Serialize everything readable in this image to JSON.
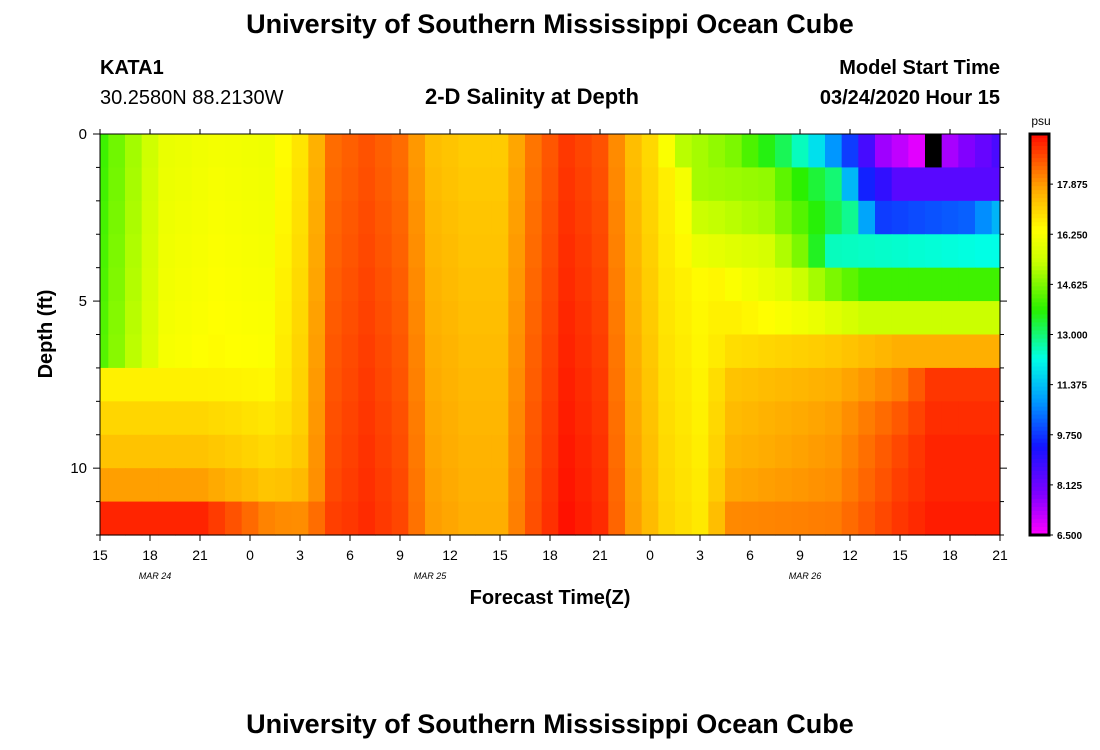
{
  "page": {
    "title_top": "University of Southern Mississippi Ocean Cube",
    "title_bottom": "University of Southern Mississippi Ocean Cube",
    "station": "KATA1",
    "coordinates": "30.2580N 88.2130W",
    "plot_title": "2-D Salinity at Depth",
    "model_start_label": "Model Start Time",
    "model_start_value": "03/24/2020 Hour 15"
  },
  "chart_data": {
    "type": "heatmap",
    "title": "2-D Salinity at Depth",
    "xlabel": "Forecast Time(Z)",
    "ylabel": "Depth (ft)",
    "x_range": [
      0,
      54
    ],
    "y_range": [
      0,
      12
    ],
    "x_ticks": [
      {
        "x": 0,
        "label": "15"
      },
      {
        "x": 3,
        "label": "18"
      },
      {
        "x": 6,
        "label": "21"
      },
      {
        "x": 9,
        "label": "0"
      },
      {
        "x": 12,
        "label": "3"
      },
      {
        "x": 15,
        "label": "6"
      },
      {
        "x": 18,
        "label": "9"
      },
      {
        "x": 21,
        "label": "12"
      },
      {
        "x": 24,
        "label": "15"
      },
      {
        "x": 27,
        "label": "18"
      },
      {
        "x": 30,
        "label": "21"
      },
      {
        "x": 33,
        "label": "0"
      },
      {
        "x": 36,
        "label": "3"
      },
      {
        "x": 39,
        "label": "6"
      },
      {
        "x": 42,
        "label": "9"
      },
      {
        "x": 45,
        "label": "12"
      },
      {
        "x": 48,
        "label": "15"
      },
      {
        "x": 51,
        "label": "18"
      },
      {
        "x": 54,
        "label": "21"
      }
    ],
    "date_labels": [
      {
        "x": 4.5,
        "label": "MAR 24"
      },
      {
        "x": 21,
        "label": "MAR 25"
      },
      {
        "x": 43.5,
        "label": "MAR 26"
      }
    ],
    "y_ticks": [
      {
        "y": 0,
        "label": "0"
      },
      {
        "y": 5,
        "label": "5"
      },
      {
        "y": 10,
        "label": "10"
      }
    ],
    "y_minor_ticks": [
      1,
      2,
      3,
      4,
      6,
      7,
      8,
      9,
      11,
      12
    ],
    "colorbar": {
      "unit": "psu",
      "min": 6.5,
      "max": 19.5,
      "tick_values": [
        6.5,
        8.125,
        9.75,
        11.375,
        13.0,
        14.625,
        16.25,
        17.875
      ],
      "tick_labels": [
        "6.500",
        "8.125",
        "9.750",
        "11.375",
        "13.000",
        "14.625",
        "16.250",
        "17.875"
      ]
    },
    "columns": 55,
    "rows": 12,
    "model": {
      "description": "salinity(psu) at forecast hour x (0-54) and depth row (0-11)",
      "base_profile": [
        {
          "x": 0,
          "s": 14.2
        },
        {
          "x": 2,
          "s": 15.2
        },
        {
          "x": 4,
          "s": 16.2
        },
        {
          "x": 7,
          "s": 16.4
        },
        {
          "x": 10,
          "s": 16.3
        },
        {
          "x": 12,
          "s": 17.0
        },
        {
          "x": 14,
          "s": 18.6
        },
        {
          "x": 16,
          "s": 18.9
        },
        {
          "x": 18,
          "s": 18.6
        },
        {
          "x": 20,
          "s": 17.6
        },
        {
          "x": 22,
          "s": 17.4
        },
        {
          "x": 24,
          "s": 17.4
        },
        {
          "x": 26,
          "s": 18.5
        },
        {
          "x": 28,
          "s": 19.2
        },
        {
          "x": 30,
          "s": 18.9
        },
        {
          "x": 32,
          "s": 17.6
        },
        {
          "x": 34,
          "s": 16.8
        },
        {
          "x": 36,
          "s": 16.5
        },
        {
          "x": 40,
          "s": 16.5
        },
        {
          "x": 44,
          "s": 16.5
        },
        {
          "x": 48,
          "s": 16.5
        },
        {
          "x": 54,
          "s": 16.5
        }
      ],
      "fresh_rows": [
        [
          {
            "x": 33,
            "s": 16.8
          },
          {
            "x": 35,
            "s": 15.2
          },
          {
            "x": 38,
            "s": 14.6
          },
          {
            "x": 41,
            "s": 13.2
          },
          {
            "x": 43,
            "s": 11.8
          },
          {
            "x": 45,
            "s": 9.8
          },
          {
            "x": 47,
            "s": 7.5
          },
          {
            "x": 49,
            "s": 6.8
          },
          {
            "x": 51,
            "s": 7.4
          },
          {
            "x": 54,
            "s": 8.6
          }
        ],
        [
          {
            "x": 34,
            "s": 16.8
          },
          {
            "x": 36,
            "s": 15.0
          },
          {
            "x": 40,
            "s": 14.8
          },
          {
            "x": 42,
            "s": 13.8
          },
          {
            "x": 44,
            "s": 13.0
          },
          {
            "x": 46,
            "s": 9.5
          },
          {
            "x": 48,
            "s": 8.4
          },
          {
            "x": 54,
            "s": 8.4
          }
        ],
        [
          {
            "x": 34,
            "s": 16.8
          },
          {
            "x": 36,
            "s": 15.4
          },
          {
            "x": 40,
            "s": 15.0
          },
          {
            "x": 42,
            "s": 14.2
          },
          {
            "x": 45,
            "s": 12.8
          },
          {
            "x": 46,
            "s": 11.0
          },
          {
            "x": 47,
            "s": 9.8
          },
          {
            "x": 52,
            "s": 10.2
          },
          {
            "x": 54,
            "s": 11.2
          }
        ],
        [
          {
            "x": 34,
            "s": 16.8
          },
          {
            "x": 36,
            "s": 16.0
          },
          {
            "x": 40,
            "s": 15.6
          },
          {
            "x": 42,
            "s": 14.6
          },
          {
            "x": 44,
            "s": 12.5
          },
          {
            "x": 54,
            "s": 12.2
          }
        ],
        [
          {
            "x": 36,
            "s": 16.8
          },
          {
            "x": 38,
            "s": 16.3
          },
          {
            "x": 41,
            "s": 15.8
          },
          {
            "x": 44,
            "s": 14.6
          },
          {
            "x": 46,
            "s": 14.0
          },
          {
            "x": 54,
            "s": 14.0
          }
        ],
        [
          {
            "x": 36,
            "s": 16.8
          },
          {
            "x": 40,
            "s": 16.4
          },
          {
            "x": 43,
            "s": 16.0
          },
          {
            "x": 46,
            "s": 15.4
          },
          {
            "x": 54,
            "s": 15.4
          }
        ],
        [
          {
            "x": 36,
            "s": 16.8
          },
          {
            "x": 44,
            "s": 17.2
          },
          {
            "x": 48,
            "s": 17.6
          },
          {
            "x": 54,
            "s": 17.6
          }
        ],
        [
          {
            "x": 36,
            "s": 17.2
          },
          {
            "x": 44,
            "s": 17.6
          },
          {
            "x": 48,
            "s": 18.2
          },
          {
            "x": 50,
            "s": 19.0
          },
          {
            "x": 54,
            "s": 19.0
          }
        ],
        [
          {
            "x": 36,
            "s": 17.3
          },
          {
            "x": 44,
            "s": 17.8
          },
          {
            "x": 48,
            "s": 18.6
          },
          {
            "x": 50,
            "s": 19.1
          },
          {
            "x": 54,
            "s": 19.1
          }
        ],
        [
          {
            "x": 36,
            "s": 17.4
          },
          {
            "x": 44,
            "s": 17.9
          },
          {
            "x": 48,
            "s": 18.8
          },
          {
            "x": 50,
            "s": 19.2
          },
          {
            "x": 54,
            "s": 19.2
          }
        ],
        [
          {
            "x": 36,
            "s": 17.6
          },
          {
            "x": 44,
            "s": 18.0
          },
          {
            "x": 48,
            "s": 18.9
          },
          {
            "x": 50,
            "s": 19.2
          },
          {
            "x": 54,
            "s": 19.2
          }
        ],
        [
          {
            "x": 36,
            "s": 18.0
          },
          {
            "x": 44,
            "s": 18.2
          },
          {
            "x": 48,
            "s": 19.0
          },
          {
            "x": 50,
            "s": 19.3
          },
          {
            "x": 54,
            "s": 19.3
          }
        ]
      ],
      "deep_left": [
        {
          "row": 7,
          "s": 16.6
        },
        {
          "row": 8,
          "s": 17.0
        },
        {
          "row": 9,
          "s": 17.3
        },
        {
          "row": 10,
          "s": 17.8
        },
        {
          "row": 11,
          "s": 19.2
        }
      ],
      "blanked_cell": {
        "x": 50,
        "row": 0,
        "color": "#000000"
      }
    }
  },
  "colors": {
    "background": "#ffffff",
    "axis": "#000000",
    "colorbar_border": "#000000"
  }
}
